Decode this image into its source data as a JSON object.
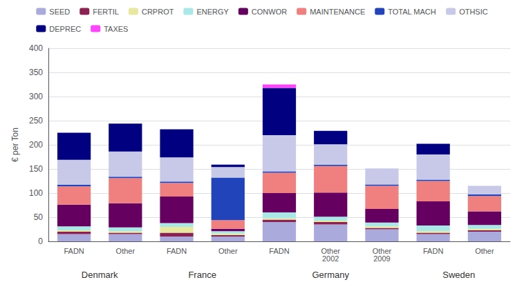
{
  "chart_data": {
    "type": "bar",
    "stacked": true,
    "grid": true,
    "legend": "top",
    "ylabel": "€ per Ton",
    "categories": [
      "FADN",
      "Other",
      "FADN",
      "Other",
      "FADN",
      "Other\n2002",
      "Other\n2009",
      "FADN",
      "Other"
    ],
    "ylim": [
      0,
      400
    ],
    "yticks": [
      0,
      50,
      100,
      150,
      200,
      250,
      300,
      350,
      400
    ],
    "annotations": [
      {
        "text": "Denmark",
        "x": 0.5
      },
      {
        "text": "France",
        "x": 2.5
      },
      {
        "text": "Germany",
        "x": 5
      },
      {
        "text": "Sweden",
        "x": 7.5
      }
    ],
    "series": [
      {
        "name": "SEED",
        "color": "#aaaadd",
        "values": [
          15,
          15,
          10,
          10,
          40,
          35,
          25,
          15,
          20
        ]
      },
      {
        "name": "FERTIL",
        "color": "#8b2252",
        "values": [
          5,
          3,
          8,
          3,
          5,
          5,
          3,
          3,
          3
        ]
      },
      {
        "name": "CRPROT",
        "color": "#e8e8a0",
        "values": [
          3,
          3,
          12,
          3,
          3,
          3,
          3,
          3,
          3
        ]
      },
      {
        "name": "ENERGY",
        "color": "#aae8e8",
        "values": [
          8,
          8,
          8,
          5,
          12,
          8,
          8,
          12,
          8
        ]
      },
      {
        "name": "CONWOR",
        "color": "#660060",
        "values": [
          45,
          50,
          55,
          5,
          40,
          50,
          28,
          50,
          28
        ]
      },
      {
        "name": "MAINTENANCE",
        "color": "#f08080",
        "values": [
          38,
          52,
          28,
          18,
          42,
          55,
          48,
          42,
          32
        ]
      },
      {
        "name": "TOTAL MACH",
        "color": "#2244bb",
        "values": [
          3,
          3,
          3,
          88,
          3,
          3,
          3,
          3,
          3
        ]
      },
      {
        "name": "OTHSIC",
        "color": "#c8c8e8",
        "values": [
          52,
          52,
          50,
          22,
          75,
          42,
          33,
          52,
          18
        ]
      },
      {
        "name": "DEPREC",
        "color": "#000080",
        "values": [
          56,
          58,
          58,
          5,
          98,
          28,
          0,
          22,
          0
        ]
      },
      {
        "name": "TAXES",
        "color": "#ff44ff",
        "values": [
          0,
          0,
          0,
          0,
          7,
          0,
          0,
          0,
          0
        ]
      }
    ]
  }
}
